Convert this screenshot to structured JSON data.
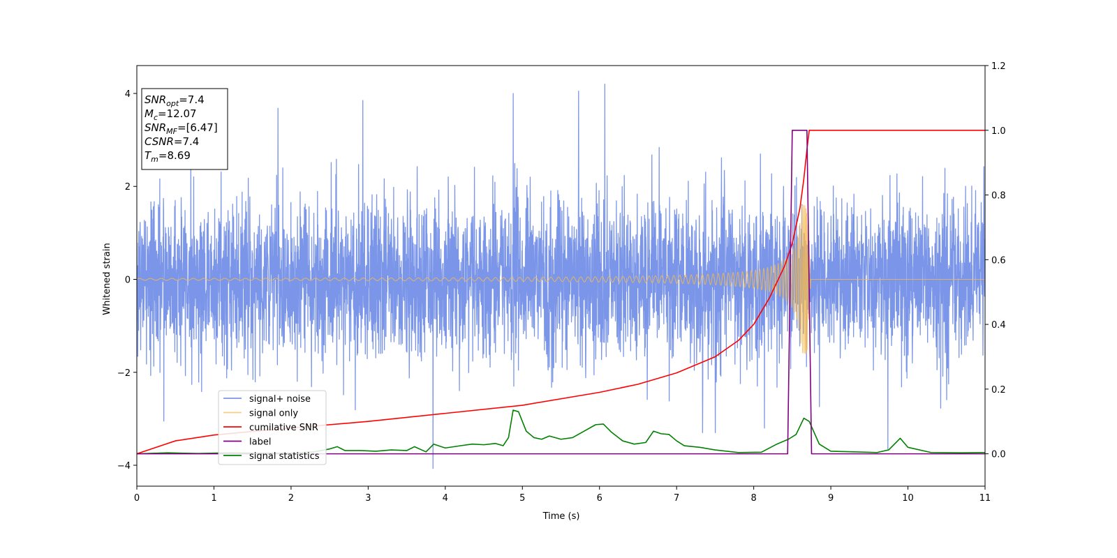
{
  "chart_data": {
    "type": "line",
    "title": "",
    "xlabel": "Time (s)",
    "ylabel": "Whitened strain",
    "y2label": "",
    "xlim": [
      0,
      11
    ],
    "ylim": [
      -4.45,
      4.6
    ],
    "y2lim": [
      -0.1,
      1.2
    ],
    "xticks": [
      "0",
      "1",
      "2",
      "3",
      "4",
      "5",
      "6",
      "7",
      "8",
      "9",
      "10",
      "11"
    ],
    "yticks": [
      "4",
      "2",
      "0",
      "−2",
      "−4"
    ],
    "y2ticks": [
      "1.2",
      "1.0",
      "0.8",
      "0.6",
      "0.4",
      "0.2",
      "0.0"
    ],
    "grid": false,
    "legend_position": "lower-left",
    "info_box": {
      "lines": [
        {
          "sym": "SNR",
          "sub": "opt",
          "value": "=7.4"
        },
        {
          "sym": "M",
          "sub": "c",
          "value": "=12.07"
        },
        {
          "sym": "SNR",
          "sub": "MF",
          "value": "=[6.47]"
        },
        {
          "sym": "CSNR",
          "sub": "",
          "value": "=7.4"
        },
        {
          "sym": "T",
          "sub": "m",
          "value": "=8.69"
        }
      ]
    },
    "series": [
      {
        "name": "signal+ noise",
        "color": "#7b96e8",
        "axis": "left",
        "kind": "noise",
        "sigma": 0.9,
        "notable_peaks": [
          {
            "x": 1.83,
            "y": 3.68
          },
          {
            "x": 2.93,
            "y": 3.85
          },
          {
            "x": 4.88,
            "y": 4.0
          },
          {
            "x": 5.73,
            "y": 4.05
          },
          {
            "x": 6.07,
            "y": 4.2
          },
          {
            "x": 3.84,
            "y": -4.07
          },
          {
            "x": 0.35,
            "y": -3.05
          },
          {
            "x": 8.14,
            "y": -3.2
          },
          {
            "x": 9.74,
            "y": -3.65
          }
        ]
      },
      {
        "name": "signal only",
        "color": "#f5b94f",
        "axis": "left",
        "kind": "chirp",
        "t_merger": 8.69,
        "peak_amplitude": 1.6
      },
      {
        "name": "cumilative SNR",
        "color": "#ff0000",
        "axis": "right",
        "x": [
          0,
          0.5,
          1,
          2,
          3,
          4,
          5,
          6,
          6.5,
          7,
          7.5,
          7.8,
          8.0,
          8.2,
          8.4,
          8.5,
          8.6,
          8.65,
          8.69,
          8.72,
          11
        ],
        "y": [
          0.0,
          0.04,
          0.058,
          0.08,
          0.1,
          0.125,
          0.15,
          0.19,
          0.215,
          0.25,
          0.3,
          0.35,
          0.4,
          0.48,
          0.58,
          0.65,
          0.76,
          0.85,
          0.94,
          1.0,
          1.0
        ]
      },
      {
        "name": "label",
        "color": "#800080",
        "axis": "right",
        "x": [
          0,
          8.44,
          8.5,
          8.69,
          8.75,
          11
        ],
        "y": [
          0,
          0,
          1,
          1,
          0,
          0
        ]
      },
      {
        "name": "signal statistics",
        "color": "#008000",
        "axis": "right",
        "x": [
          0,
          0.4,
          0.8,
          1.2,
          1.6,
          2.0,
          2.3,
          2.5,
          2.6,
          2.7,
          2.9,
          3.1,
          3.3,
          3.5,
          3.6,
          3.75,
          3.85,
          4.0,
          4.2,
          4.35,
          4.5,
          4.65,
          4.75,
          4.82,
          4.88,
          4.95,
          5.05,
          5.15,
          5.25,
          5.35,
          5.5,
          5.65,
          5.8,
          5.95,
          6.05,
          6.15,
          6.3,
          6.45,
          6.6,
          6.7,
          6.8,
          6.9,
          7.0,
          7.1,
          7.3,
          7.5,
          7.8,
          8.1,
          8.3,
          8.45,
          8.55,
          8.65,
          8.72,
          8.85,
          9.0,
          9.3,
          9.6,
          9.75,
          9.9,
          10.0,
          10.3,
          10.7,
          11
        ],
        "y": [
          0.0,
          0.003,
          0.001,
          0.003,
          0.002,
          0.002,
          0.006,
          0.015,
          0.022,
          0.01,
          0.01,
          0.008,
          0.012,
          0.01,
          0.022,
          0.006,
          0.03,
          0.018,
          0.025,
          0.03,
          0.028,
          0.032,
          0.025,
          0.05,
          0.135,
          0.13,
          0.07,
          0.05,
          0.045,
          0.055,
          0.045,
          0.05,
          0.07,
          0.09,
          0.092,
          0.068,
          0.04,
          0.03,
          0.035,
          0.07,
          0.062,
          0.06,
          0.04,
          0.025,
          0.02,
          0.012,
          0.004,
          0.005,
          0.03,
          0.045,
          0.06,
          0.11,
          0.1,
          0.03,
          0.008,
          0.006,
          0.004,
          0.012,
          0.048,
          0.02,
          0.004,
          0.003,
          0.004
        ]
      }
    ]
  }
}
